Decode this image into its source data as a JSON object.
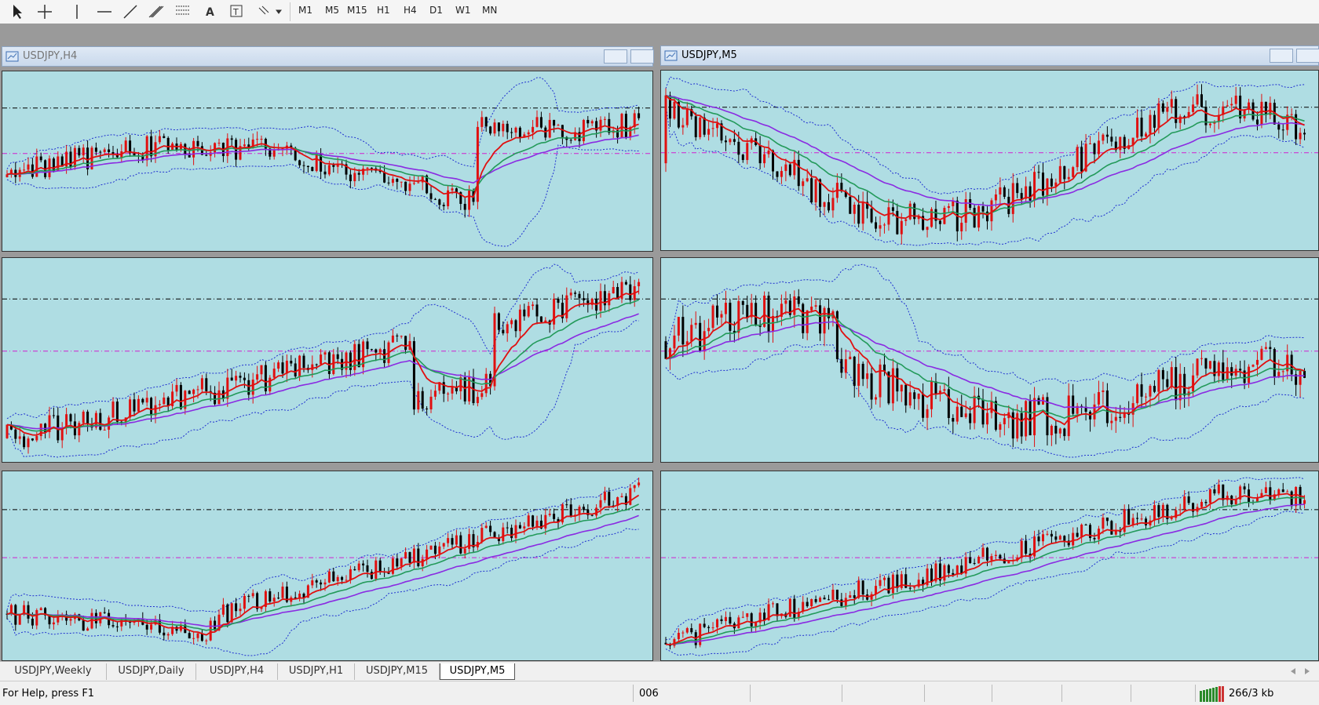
{
  "toolbar": {
    "timeframes": [
      "M1",
      "M5",
      "M15",
      "H1",
      "H4",
      "D1",
      "W1",
      "MN"
    ]
  },
  "windows": [
    {
      "title": "USDJPY,H4"
    },
    {
      "title": "USDJPY,M5"
    }
  ],
  "tabs": [
    "USDJPY,Weekly",
    "USDJPY,Daily",
    "USDJPY,H4",
    "USDJPY,H1",
    "USDJPY,M15",
    "USDJPY,M5"
  ],
  "status": {
    "help": "For Help, press F1",
    "profile": "006",
    "traffic": "266/3 kb"
  }
}
